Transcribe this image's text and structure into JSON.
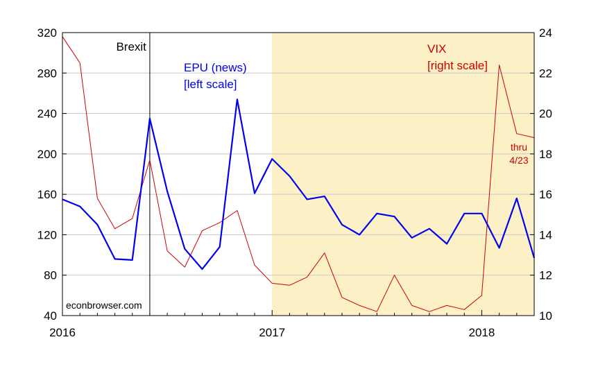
{
  "chart_data": {
    "type": "line",
    "title": "",
    "xlabel": "",
    "ylabel": "",
    "x_tick_labels": [
      "2016",
      "2017",
      "2018"
    ],
    "y_left": {
      "min": 40,
      "max": 320,
      "ticks": [
        40,
        80,
        120,
        160,
        200,
        240,
        280,
        320
      ]
    },
    "y_right": {
      "min": 10,
      "max": 24,
      "ticks": [
        10,
        12,
        14,
        16,
        18,
        20,
        22,
        24
      ]
    },
    "grid": true,
    "months": [
      "2016-01",
      "2016-02",
      "2016-03",
      "2016-04",
      "2016-05",
      "2016-06",
      "2016-07",
      "2016-08",
      "2016-09",
      "2016-10",
      "2016-11",
      "2016-12",
      "2017-01",
      "2017-02",
      "2017-03",
      "2017-04",
      "2017-05",
      "2017-06",
      "2017-07",
      "2017-08",
      "2017-09",
      "2017-10",
      "2017-11",
      "2017-12",
      "2018-01",
      "2018-02",
      "2018-03",
      "2018-04"
    ],
    "series": [
      {
        "name": "EPU (news)",
        "axis": "left",
        "color": "#0000ee",
        "values": [
          155,
          148,
          130,
          96,
          95,
          235,
          163,
          106,
          86,
          108,
          254,
          161,
          195,
          178,
          155,
          158,
          130,
          120,
          141,
          138,
          117,
          126,
          111,
          141,
          141,
          107,
          156,
          97
        ]
      },
      {
        "name": "VIX",
        "axis": "right",
        "color": "#cc0000",
        "values": [
          23.8,
          22.5,
          15.8,
          14.3,
          14.8,
          17.7,
          13.2,
          12.4,
          14.2,
          14.6,
          15.2,
          12.5,
          11.6,
          11.5,
          11.9,
          13.1,
          10.9,
          10.5,
          10.2,
          12.0,
          10.5,
          10.2,
          10.5,
          10.3,
          11.0,
          22.4,
          19.0,
          18.8
        ]
      }
    ],
    "shaded_region": {
      "start": "2017-01",
      "end": "2018-04",
      "color": "#fcf0c6"
    },
    "event_line": {
      "month": "2016-06",
      "label": "Brexit"
    },
    "annotations": {
      "epu_label": "EPU (news)",
      "epu_scale": "[left scale]",
      "vix_label": "VIX",
      "vix_scale": "[right scale]",
      "thru": "thru",
      "thru_date": "4/23",
      "source": "econbrowser.com"
    }
  }
}
